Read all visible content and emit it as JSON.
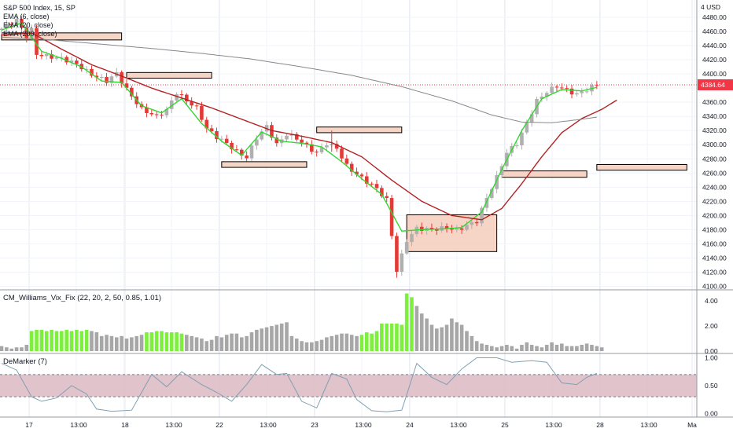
{
  "header": {
    "symbol": "S&P 500 Index, 15, SP",
    "indicators": [
      "EMA (6, close)",
      "EMA (20, close)",
      "EMA (200, close)"
    ]
  },
  "colors": {
    "up": "#b0b0b0",
    "down": "#e53935",
    "ema6": "#33d633",
    "ema20": "#b22222",
    "ema200": "#888888",
    "price_tag": "#f23645",
    "zone_fill": "#f5cbb8",
    "zone_edge": "#000000",
    "vix_green": "#7cf03c",
    "vix_gray": "#a7a7a7",
    "demarker_line": "#7f9fb2",
    "band": "#dcb9c2"
  },
  "chart_data": [
    {
      "type": "candlestick",
      "panel": "main",
      "title": "S&P 500 Index, 15, SP",
      "unit": "USD",
      "ylim": [
        4095,
        4500
      ],
      "y_ticks": [
        4480,
        4460,
        4440,
        4420,
        4400,
        4380,
        4360,
        4340,
        4320,
        4300,
        4280,
        4260,
        4240,
        4220,
        4200,
        4180,
        4160,
        4140,
        4120,
        4100
      ],
      "x_labels": [
        "17",
        "13:00",
        "18",
        "13:00",
        "22",
        "13:00",
        "23",
        "13:00",
        "24",
        "13:00",
        "25",
        "13:00",
        "28",
        "13:00",
        "Ma"
      ],
      "last_price": "4384.64",
      "close_path": [
        [
          0,
          4464
        ],
        [
          3,
          4476
        ],
        [
          5,
          4453
        ],
        [
          6,
          4462
        ],
        [
          7,
          4428
        ],
        [
          9,
          4425
        ],
        [
          12,
          4422
        ],
        [
          15,
          4414
        ],
        [
          18,
          4399
        ],
        [
          21,
          4390
        ],
        [
          23,
          4401
        ],
        [
          25,
          4378
        ],
        [
          28,
          4350
        ],
        [
          31,
          4340
        ],
        [
          33,
          4349
        ],
        [
          35,
          4374
        ],
        [
          37,
          4362
        ],
        [
          39,
          4352
        ],
        [
          41,
          4323
        ],
        [
          43,
          4311
        ],
        [
          45,
          4302
        ],
        [
          47,
          4290
        ],
        [
          49,
          4282
        ],
        [
          51,
          4310
        ],
        [
          53,
          4326
        ],
        [
          55,
          4300
        ],
        [
          57,
          4315
        ],
        [
          59,
          4309
        ],
        [
          61,
          4298
        ],
        [
          63,
          4288
        ],
        [
          65,
          4302
        ],
        [
          67,
          4295
        ],
        [
          69,
          4270
        ],
        [
          71,
          4258
        ],
        [
          73,
          4248
        ],
        [
          75,
          4238
        ],
        [
          77,
          4222
        ],
        [
          79,
          4122
        ],
        [
          81,
          4165
        ],
        [
          83,
          4182
        ],
        [
          86,
          4180
        ],
        [
          89,
          4183
        ],
        [
          91,
          4179
        ],
        [
          93,
          4186
        ],
        [
          95,
          4192
        ],
        [
          97,
          4225
        ],
        [
          99,
          4254
        ],
        [
          101,
          4289
        ],
        [
          103,
          4302
        ],
        [
          105,
          4330
        ],
        [
          107,
          4362
        ],
        [
          109,
          4375
        ],
        [
          111,
          4383
        ],
        [
          113,
          4377
        ],
        [
          115,
          4371
        ],
        [
          117,
          4378
        ],
        [
          119,
          4384.64
        ]
      ],
      "wick_spikes": [
        [
          24,
          4400,
          4405
        ],
        [
          79,
          4112,
          4140
        ],
        [
          66,
          4290,
          4320
        ]
      ],
      "series": [
        {
          "name": "EMA (6, close)",
          "color": "#33d633",
          "values": [
            [
              0,
              4462
            ],
            [
              4,
              4472
            ],
            [
              8,
              4432
            ],
            [
              12,
              4422
            ],
            [
              16,
              4410
            ],
            [
              20,
              4390
            ],
            [
              24,
              4388
            ],
            [
              28,
              4355
            ],
            [
              32,
              4345
            ],
            [
              36,
              4365
            ],
            [
              40,
              4330
            ],
            [
              44,
              4305
            ],
            [
              48,
              4285
            ],
            [
              52,
              4318
            ],
            [
              56,
              4305
            ],
            [
              60,
              4302
            ],
            [
              64,
              4297
            ],
            [
              68,
              4276
            ],
            [
              72,
              4252
            ],
            [
              76,
              4230
            ],
            [
              80,
              4178
            ],
            [
              84,
              4180
            ],
            [
              88,
              4181
            ],
            [
              92,
              4183
            ],
            [
              96,
              4205
            ],
            [
              100,
              4265
            ],
            [
              104,
              4320
            ],
            [
              108,
              4365
            ],
            [
              112,
              4378
            ],
            [
              116,
              4376
            ],
            [
              119,
              4381
            ]
          ]
        },
        {
          "name": "EMA (20, close)",
          "color": "#b22222",
          "values": [
            [
              0,
              4455
            ],
            [
              6,
              4458
            ],
            [
              12,
              4435
            ],
            [
              18,
              4413
            ],
            [
              24,
              4397
            ],
            [
              30,
              4380
            ],
            [
              36,
              4366
            ],
            [
              42,
              4352
            ],
            [
              48,
              4336
            ],
            [
              54,
              4320
            ],
            [
              60,
              4312
            ],
            [
              66,
              4303
            ],
            [
              72,
              4283
            ],
            [
              78,
              4250
            ],
            [
              84,
              4220
            ],
            [
              90,
              4200
            ],
            [
              96,
              4194
            ],
            [
              100,
              4210
            ],
            [
              104,
              4245
            ],
            [
              108,
              4283
            ],
            [
              112,
              4317
            ],
            [
              116,
              4337
            ],
            [
              120,
              4350
            ],
            [
              123,
              4363
            ]
          ]
        },
        {
          "name": "EMA (200, close)",
          "color": "#888888",
          "values": [
            [
              0,
              4452
            ],
            [
              10,
              4448
            ],
            [
              20,
              4442
            ],
            [
              30,
              4436
            ],
            [
              40,
              4429
            ],
            [
              50,
              4421
            ],
            [
              60,
              4410
            ],
            [
              70,
              4398
            ],
            [
              80,
              4382
            ],
            [
              90,
              4362
            ],
            [
              98,
              4342
            ],
            [
              104,
              4332
            ],
            [
              110,
              4331
            ],
            [
              116,
              4336
            ],
            [
              119,
              4339
            ]
          ]
        }
      ],
      "zones": [
        {
          "x": [
            0,
            24
          ],
          "y": [
            4448,
            4458
          ]
        },
        {
          "x": [
            25,
            42
          ],
          "y": [
            4394,
            4402
          ]
        },
        {
          "x": [
            44,
            61
          ],
          "y": [
            4268,
            4276
          ]
        },
        {
          "x": [
            63,
            80
          ],
          "y": [
            4317,
            4325
          ]
        },
        {
          "x": [
            81,
            99
          ],
          "y": [
            4149,
            4201
          ]
        },
        {
          "x": [
            100,
            117
          ],
          "y": [
            4254,
            4263
          ]
        },
        {
          "x": [
            119,
            137
          ],
          "y": [
            4264,
            4272
          ]
        }
      ]
    },
    {
      "type": "bar",
      "panel": "indicator-1",
      "title": "CM_Williams_Vix_Fix (22, 20, 2, 50, 0.85, 1.01)",
      "ylim": [
        0,
        4.7
      ],
      "y_ticks": [
        "4.00",
        "2.00",
        "0.00"
      ],
      "values": [
        0.4,
        0.3,
        0.2,
        0.3,
        0.3,
        0.5,
        1.6,
        1.7,
        1.7,
        1.6,
        1.7,
        1.6,
        1.6,
        1.7,
        1.6,
        1.7,
        1.6,
        1.7,
        1.6,
        1.5,
        1.2,
        1.3,
        1.2,
        1.1,
        1.2,
        1.0,
        1.1,
        1.2,
        1.3,
        1.5,
        1.5,
        1.6,
        1.6,
        1.5,
        1.5,
        1.5,
        1.4,
        1.3,
        1.2,
        1.1,
        1.0,
        0.8,
        0.9,
        1.2,
        1.1,
        1.3,
        1.4,
        1.4,
        1.1,
        1.2,
        1.5,
        1.7,
        1.8,
        1.9,
        2.0,
        2.1,
        2.2,
        2.3,
        1.2,
        1.0,
        0.8,
        0.7,
        0.7,
        0.8,
        0.9,
        1.1,
        1.2,
        1.3,
        1.4,
        1.4,
        1.3,
        1.2,
        1.3,
        1.5,
        1.4,
        1.6,
        2.2,
        2.2,
        2.2,
        2.2,
        2.1,
        4.6,
        4.3,
        3.6,
        3.0,
        2.6,
        2.1,
        1.8,
        1.9,
        2.1,
        2.6,
        2.3,
        2.1,
        1.6,
        1.2,
        0.8,
        0.6,
        0.5,
        0.4,
        0.3,
        0.4,
        0.5,
        0.4,
        0.2,
        0.5,
        0.7,
        0.5,
        0.4,
        0.3,
        0.5,
        0.7,
        0.5,
        0.6,
        0.4,
        0.4,
        0.4,
        0.5,
        0.6,
        0.5,
        0.4,
        0.3
      ],
      "green": [
        6,
        7,
        8,
        9,
        10,
        11,
        12,
        13,
        14,
        15,
        16,
        17,
        29,
        30,
        31,
        32,
        33,
        34,
        35,
        36,
        72,
        73,
        74,
        75,
        76,
        77,
        78,
        79,
        80,
        81,
        82
      ]
    },
    {
      "type": "line",
      "panel": "indicator-2",
      "title": "DeMarker (7)",
      "ylim": [
        -0.05,
        1.05
      ],
      "y_ticks": [
        "1.00",
        "0.50",
        "0.00"
      ],
      "band": [
        0.3,
        0.7
      ],
      "values": [
        [
          0,
          0.9
        ],
        [
          3,
          0.78
        ],
        [
          6,
          0.3
        ],
        [
          8,
          0.22
        ],
        [
          11,
          0.28
        ],
        [
          14,
          0.5
        ],
        [
          17,
          0.35
        ],
        [
          19,
          0.08
        ],
        [
          22,
          0.04
        ],
        [
          26,
          0.06
        ],
        [
          30,
          0.7
        ],
        [
          33,
          0.48
        ],
        [
          36,
          0.75
        ],
        [
          40,
          0.52
        ],
        [
          43,
          0.38
        ],
        [
          46,
          0.22
        ],
        [
          49,
          0.52
        ],
        [
          52,
          0.88
        ],
        [
          55,
          0.7
        ],
        [
          57,
          0.72
        ],
        [
          60,
          0.22
        ],
        [
          63,
          0.1
        ],
        [
          66,
          0.72
        ],
        [
          69,
          0.62
        ],
        [
          71,
          0.25
        ],
        [
          74,
          0.05
        ],
        [
          77,
          0.03
        ],
        [
          80,
          0.06
        ],
        [
          83,
          0.9
        ],
        [
          86,
          0.65
        ],
        [
          89,
          0.52
        ],
        [
          92,
          0.8
        ],
        [
          95,
          1.0
        ],
        [
          99,
          1.0
        ],
        [
          102,
          0.92
        ],
        [
          106,
          0.95
        ],
        [
          109,
          0.92
        ],
        [
          112,
          0.55
        ],
        [
          115,
          0.52
        ],
        [
          117,
          0.65
        ],
        [
          119,
          0.72
        ]
      ]
    }
  ]
}
